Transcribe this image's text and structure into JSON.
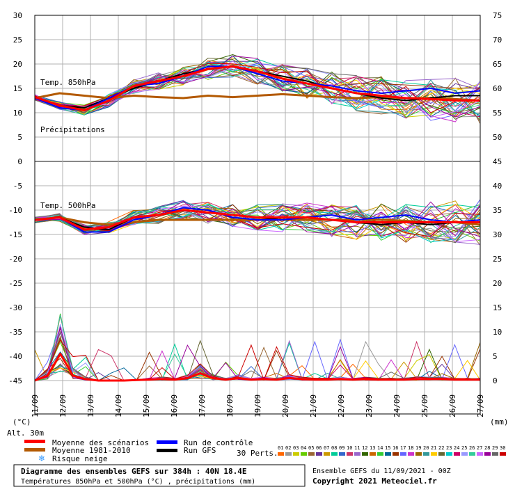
{
  "chart_data": {
    "type": "line",
    "left_axis": {
      "unit_label": "(°C)",
      "ticks": [
        30,
        25,
        20,
        15,
        10,
        5,
        0,
        -5,
        -10,
        -15,
        -20,
        -25,
        -30,
        -35,
        -40,
        -45
      ],
      "range": [
        -45,
        30
      ]
    },
    "right_axis": {
      "unit_label": "(mm)",
      "ticks": [
        75,
        70,
        65,
        60,
        55,
        50,
        45,
        40,
        35,
        30,
        25,
        20,
        15,
        10,
        5,
        0
      ],
      "range": [
        0,
        75
      ]
    },
    "x_dates": [
      "11/09",
      "12/09",
      "13/09",
      "14/09",
      "15/09",
      "16/09",
      "17/09",
      "18/09",
      "19/09",
      "20/09",
      "21/09",
      "22/09",
      "23/09",
      "24/09",
      "25/09",
      "26/09",
      "27/09"
    ],
    "panel_labels": {
      "t850": "Temp. 850hPa",
      "precip": "Précipitations",
      "t500": "Temp. 500hPa"
    },
    "t850": {
      "mean": [
        13.2,
        11.5,
        10.5,
        12.5,
        15.5,
        16.5,
        17.5,
        19.0,
        19.5,
        18.5,
        17.0,
        16.0,
        15.0,
        14.0,
        13.5,
        13.0,
        12.8,
        12.5,
        12.5
      ],
      "climatology": [
        13.0,
        14.0,
        13.5,
        13.0,
        13.5,
        13.2,
        13.0,
        13.5,
        13.2,
        13.5,
        13.8,
        13.5,
        13.2,
        13.0,
        13.2,
        13.0,
        13.0,
        12.8,
        12.5
      ],
      "control": [
        13.0,
        11.0,
        10.5,
        13.0,
        15.5,
        16.0,
        17.5,
        19.5,
        19.5,
        18.0,
        16.5,
        16.0,
        15.5,
        14.5,
        14.0,
        14.5,
        15.0,
        14.0,
        14.5
      ],
      "gfs": [
        13.0,
        11.5,
        11.0,
        13.0,
        15.0,
        16.5,
        18.0,
        19.0,
        19.5,
        18.5,
        17.5,
        16.5,
        15.0,
        14.0,
        13.0,
        12.5,
        13.0,
        13.5,
        13.5
      ]
    },
    "t500": {
      "mean": [
        -12.0,
        -11.5,
        -14.0,
        -13.5,
        -11.5,
        -11.0,
        -10.0,
        -10.5,
        -11.0,
        -11.5,
        -11.5,
        -11.5,
        -12.0,
        -12.5,
        -12.5,
        -12.5,
        -12.5,
        -12.5,
        -12.5
      ],
      "climatology": [
        -12.0,
        -11.5,
        -12.5,
        -13.0,
        -12.5,
        -12.0,
        -12.0,
        -12.0,
        -12.0,
        -12.0,
        -12.0,
        -12.0,
        -12.0,
        -12.0,
        -12.0,
        -12.2,
        -12.5,
        -12.5,
        -13.0
      ],
      "control": [
        -12.0,
        -11.5,
        -14.5,
        -14.5,
        -12.0,
        -11.0,
        -9.5,
        -10.0,
        -11.5,
        -12.0,
        -12.0,
        -11.5,
        -11.0,
        -12.0,
        -11.5,
        -11.0,
        -12.0,
        -12.5,
        -12.0
      ],
      "gfs": [
        -12.0,
        -11.5,
        -13.5,
        -14.0,
        -11.5,
        -11.0,
        -10.0,
        -10.5,
        -11.0,
        -11.5,
        -12.0,
        -11.5,
        -12.0,
        -12.5,
        -13.0,
        -12.5,
        -13.0,
        -12.5,
        -12.5
      ]
    },
    "precip": {
      "mean": [
        0,
        1.0,
        5.5,
        1.0,
        0.3,
        0,
        0,
        0,
        0.1,
        0.2,
        0.3,
        0.2,
        0.5,
        1.5,
        0.5,
        0.2,
        0.5,
        0.2,
        0.3,
        0.2,
        0.5,
        0.3,
        0.2,
        0.2,
        0.3,
        0.2,
        0.3,
        0.2,
        0.2,
        0.2,
        0.3,
        0.3,
        0.3,
        0.2,
        0.2,
        0.2
      ]
    },
    "legend": {
      "alt": "Alt. 30m",
      "mean": "Moyenne des scénarios",
      "climatology": "Moyenne 1981-2010",
      "snow": "Risque neige",
      "control": "Run de contrôle",
      "gfs": "Run GFS",
      "perts_label": "30 Perts.",
      "pert_ids": [
        "01",
        "02",
        "03",
        "04",
        "05",
        "06",
        "07",
        "08",
        "09",
        "10",
        "11",
        "12",
        "13",
        "14",
        "15",
        "16",
        "17",
        "18",
        "19",
        "20",
        "21",
        "22",
        "23",
        "24",
        "25",
        "26",
        "27",
        "28",
        "29",
        "30"
      ]
    },
    "colors": {
      "mean": "#ff0000",
      "climatology": "#b35900",
      "control": "#0000ff",
      "gfs": "#000000",
      "grid": "#b0b0b0",
      "zero_line": "#888888",
      "perts": [
        "#ff6600",
        "#999999",
        "#cccc00",
        "#66cc00",
        "#996633",
        "#663399",
        "#cc9900",
        "#00cc99",
        "#3366cc",
        "#cc3366",
        "#9966cc",
        "#336600",
        "#cc6600",
        "#33cc33",
        "#006699",
        "#993300",
        "#6666ff",
        "#cc33cc",
        "#996600",
        "#339999",
        "#ffcc00",
        "#666633",
        "#00cccc",
        "#cc0066",
        "#9999ff",
        "#33cc99",
        "#cc66ff",
        "#990099",
        "#666666",
        "#cc0000"
      ]
    },
    "footer": {
      "title": "Diagramme des ensembles GEFS sur 384h : 40N 18.4E",
      "subtitle": "Températures 850hPa et 500hPa (°C) , précipitations (mm)",
      "run_info": "Ensemble GEFS du 11/09/2021 - 00Z",
      "copyright": "Copyright 2021 Meteociel.fr"
    }
  }
}
